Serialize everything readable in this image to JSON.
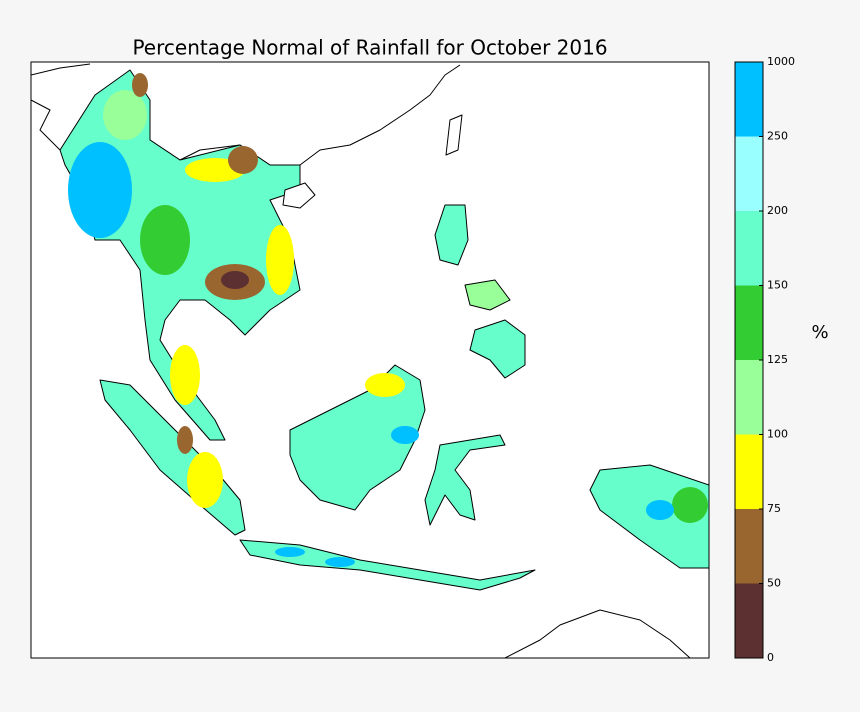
{
  "title": "Percentage Normal of Rainfall for October 2016",
  "colorbar": {
    "label": "%",
    "ticks": [
      0,
      50,
      75,
      100,
      125,
      150,
      200,
      250,
      1000
    ],
    "colors": [
      "#5c3030",
      "#9a6630",
      "#ffff00",
      "#99ff99",
      "#33cc33",
      "#66ffcc",
      "#99ffff",
      "#00c0ff"
    ]
  }
}
